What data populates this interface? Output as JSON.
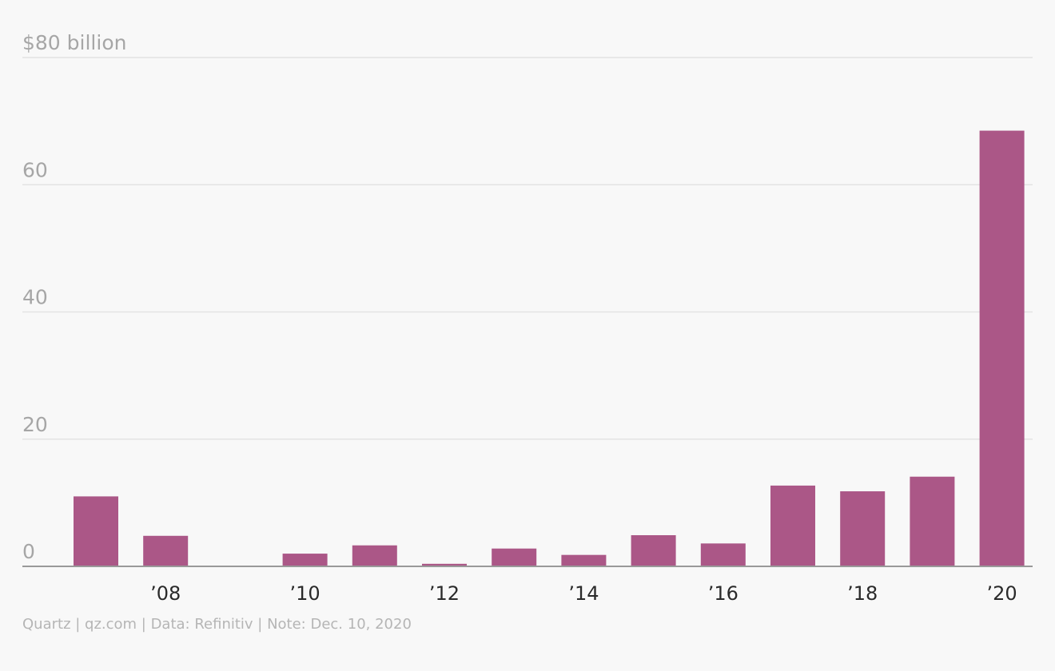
{
  "chart_data": {
    "type": "bar",
    "categories": [
      "2007",
      "2008",
      "2009",
      "2010",
      "2011",
      "2012",
      "2013",
      "2014",
      "2015",
      "2016",
      "2017",
      "2018",
      "2019",
      "2020"
    ],
    "values": [
      11.0,
      4.8,
      0,
      2.0,
      3.3,
      0.4,
      2.8,
      1.8,
      4.9,
      3.6,
      12.7,
      11.8,
      14.1,
      68.5
    ],
    "ylim": [
      0,
      80
    ],
    "yticks": [
      {
        "value": 80,
        "label": "$80 billion"
      },
      {
        "value": 60,
        "label": "60"
      },
      {
        "value": 40,
        "label": "40"
      },
      {
        "value": 20,
        "label": "20"
      },
      {
        "value": 0,
        "label": "0"
      }
    ],
    "xticks": [
      {
        "category": "2008",
        "label": "’08"
      },
      {
        "category": "2010",
        "label": "’10"
      },
      {
        "category": "2012",
        "label": "’12"
      },
      {
        "category": "2014",
        "label": "’14"
      },
      {
        "category": "2016",
        "label": "’16"
      },
      {
        "category": "2018",
        "label": "’18"
      },
      {
        "category": "2020",
        "label": "’20"
      }
    ],
    "grid": true,
    "bar_color": "#ab5787"
  },
  "footer": {
    "source": "Quartz | qz.com | Data: Refinitiv | Note: Dec. 10, 2020"
  }
}
